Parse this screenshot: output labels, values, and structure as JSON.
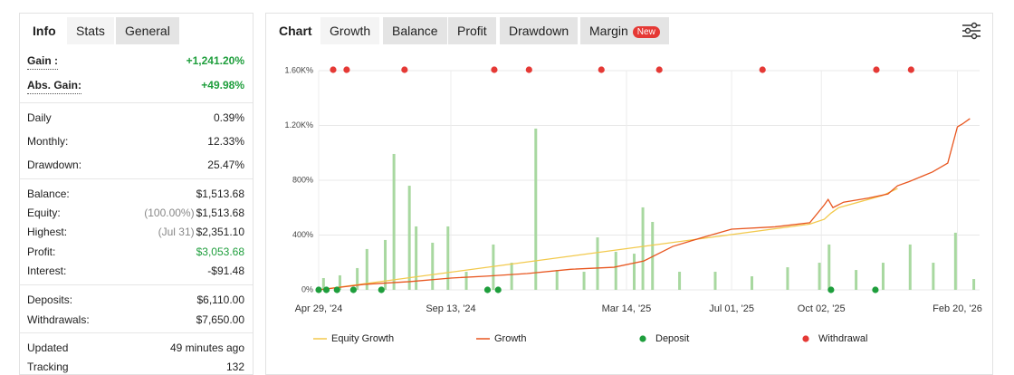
{
  "left_panel": {
    "tabs": [
      "Info",
      "Stats",
      "General"
    ],
    "groups": [
      [
        {
          "label": "Gain :",
          "value": "+1,241.20%",
          "color": "#1e9e3c"
        },
        {
          "label": "Abs. Gain:",
          "value": "+49.98%",
          "color": "#1e9e3c"
        }
      ],
      [
        {
          "label": "Daily",
          "value": "0.39%"
        },
        {
          "label": "Monthly:",
          "value": "12.33%"
        },
        {
          "label": "Drawdown:",
          "value": "25.47%"
        }
      ],
      [
        {
          "label": "Balance:",
          "value": "$1,513.68"
        },
        {
          "label": "Equity:",
          "note": "(100.00%)",
          "value": "$1,513.68"
        },
        {
          "label": "Highest:",
          "note": "(Jul 31)",
          "value": "$2,351.10"
        },
        {
          "label": "Profit:",
          "value": "$3,053.68",
          "color": "#1e9e3c"
        },
        {
          "label": "Interest:",
          "value": "-$91.48"
        }
      ],
      [
        {
          "label": "Deposits:",
          "value": "$6,110.00"
        },
        {
          "label": "Withdrawals:",
          "value": "$7,650.00"
        }
      ],
      [
        {
          "label": "Updated",
          "value": "49 minutes ago"
        },
        {
          "label": "Tracking",
          "value": "132"
        }
      ]
    ]
  },
  "right_panel": {
    "tabs": [
      "Chart",
      "Growth",
      "Balance",
      "Profit",
      "Drawdown",
      "Margin"
    ],
    "badge": "New"
  },
  "chart_data": {
    "type": "line",
    "xlim": [
      "2024-04-29",
      "2026-03-15"
    ],
    "xticks": [
      {
        "value": "2024-04-29",
        "label": "Apr 29, '24"
      },
      {
        "value": "2024-09-13",
        "label": "Sep 13, '24"
      },
      {
        "value": "2025-03-14",
        "label": "Mar 14, '25"
      },
      {
        "value": "2025-07-01",
        "label": "Jul 01, '25"
      },
      {
        "value": "2025-10-02",
        "label": "Oct 02, '25"
      },
      {
        "value": "2026-02-20",
        "label": "Feb 20, '26"
      }
    ],
    "ylim": [
      0,
      1600
    ],
    "yticks": [
      {
        "value": 0,
        "label": "0%"
      },
      {
        "value": 400,
        "label": "400%"
      },
      {
        "value": 800,
        "label": "800%"
      },
      {
        "value": 1200,
        "label": "1.20K%"
      },
      {
        "value": 1600,
        "label": "1.60K%"
      }
    ],
    "grid": true,
    "bars": {
      "color": "#a8d8a0",
      "x": [
        "2024-05-04",
        "2024-05-21",
        "2024-06-08",
        "2024-06-18",
        "2024-07-07",
        "2024-07-16",
        "2024-08-01",
        "2024-08-08",
        "2024-08-25",
        "2024-09-10",
        "2024-09-29",
        "2024-10-27",
        "2024-11-15",
        "2024-12-10",
        "2025-01-01",
        "2025-01-29",
        "2025-02-12",
        "2025-03-03",
        "2025-03-22",
        "2025-03-31",
        "2025-04-10",
        "2025-05-08",
        "2025-06-14",
        "2025-07-22",
        "2025-08-28",
        "2025-09-30",
        "2025-10-10",
        "2025-11-07",
        "2025-12-05",
        "2026-01-02",
        "2026-01-26",
        "2026-02-18",
        "2026-03-09"
      ],
      "values": [
        86,
        106,
        159,
        298,
        364,
        992,
        760,
        463,
        344,
        463,
        132,
        331,
        198,
        1177,
        145,
        132,
        383,
        278,
        264,
        602,
        496,
        132,
        132,
        99,
        165,
        198,
        331,
        145,
        198,
        331,
        198,
        417,
        79
      ]
    },
    "series": [
      {
        "name": "Equity Growth",
        "color": "#f2c94c",
        "type": "line",
        "x": [
          "2024-04-29",
          "2025-09-20",
          "2025-10-05",
          "2025-10-12",
          "2025-10-20",
          "2025-12-05",
          "2025-12-20"
        ],
        "values": [
          0,
          480,
          515,
          560,
          600,
          690,
          740
        ]
      },
      {
        "name": "Growth",
        "color": "#e8561f",
        "type": "line",
        "x": [
          "2024-04-29",
          "2024-06-15",
          "2024-08-01",
          "2024-09-13",
          "2024-10-20",
          "2024-12-01",
          "2025-01-15",
          "2025-03-01",
          "2025-04-01",
          "2025-05-01",
          "2025-06-01",
          "2025-07-01",
          "2025-08-15",
          "2025-09-20",
          "2025-10-05",
          "2025-10-09",
          "2025-10-14",
          "2025-10-25",
          "2025-11-20",
          "2025-12-10",
          "2025-12-20",
          "2026-01-01",
          "2026-01-25",
          "2026-02-10",
          "2026-02-20",
          "2026-02-25",
          "2026-03-05"
        ],
        "values": [
          0,
          40,
          60,
          86,
          100,
          119,
          150,
          165,
          211,
          317,
          383,
          443,
          460,
          490,
          620,
          660,
          600,
          640,
          670,
          700,
          760,
          790,
          860,
          925,
          1190,
          1210,
          1250
        ]
      },
      {
        "name": "Deposit",
        "color": "#1e9e3c",
        "type": "scatter",
        "x": [
          "2024-04-29",
          "2024-05-07",
          "2024-05-18",
          "2024-06-04",
          "2024-07-03",
          "2024-10-21",
          "2024-11-01",
          "2025-10-12",
          "2025-11-27"
        ]
      },
      {
        "name": "Withdrawal",
        "color": "#e53935",
        "type": "scatter",
        "x": [
          "2024-05-14",
          "2024-05-28",
          "2024-07-27",
          "2024-10-28",
          "2024-12-03",
          "2025-02-16",
          "2025-04-17",
          "2025-08-02",
          "2025-11-28",
          "2026-01-03"
        ]
      }
    ]
  }
}
